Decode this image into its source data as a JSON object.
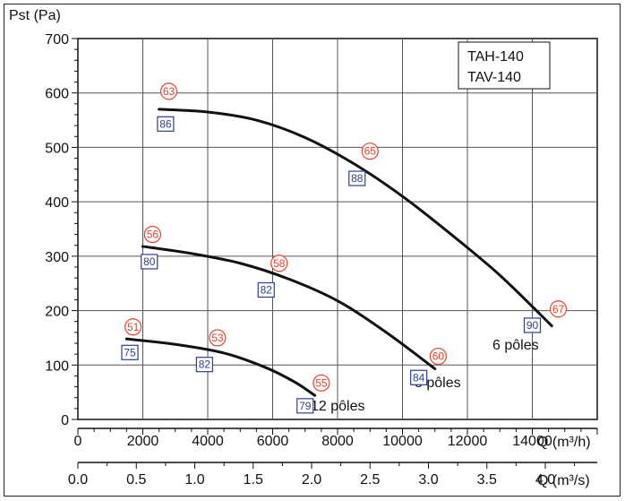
{
  "chart_data": {
    "type": "line",
    "title": "",
    "ylabel": "Pst (Pa)",
    "xlabel_primary": "Q (m³/h)",
    "xlabel_secondary": "Q (m³/s)",
    "xlim": [
      0,
      16000
    ],
    "ylim": [
      0,
      700
    ],
    "grid": true,
    "x_ticks": [
      "0",
      "2000",
      "4000",
      "6000",
      "8000",
      "10000",
      "12000",
      "14000"
    ],
    "x_ticks_secondary": [
      "0.0",
      "0.5",
      "1.0",
      "1.5",
      "2.0",
      "2.5",
      "3.0",
      "3.5",
      "4.0"
    ],
    "y_ticks": [
      "0",
      "100",
      "200",
      "300",
      "400",
      "500",
      "600",
      "700"
    ],
    "legend_box": [
      "TAH-140",
      "TAV-140"
    ],
    "series": [
      {
        "name": "6 pôles",
        "points": [
          [
            2500,
            570
          ],
          [
            4000,
            565
          ],
          [
            5500,
            550
          ],
          [
            7000,
            518
          ],
          [
            8500,
            470
          ],
          [
            10000,
            410
          ],
          [
            11500,
            340
          ],
          [
            13000,
            265
          ],
          [
            14600,
            172
          ]
        ],
        "lw_markers": [
          {
            "x": 2800,
            "y": 603,
            "label": "63"
          },
          {
            "x": 9000,
            "y": 493,
            "label": "65"
          },
          {
            "x": 14800,
            "y": 203,
            "label": "67"
          }
        ],
        "lp_markers": [
          {
            "x": 2700,
            "y": 543,
            "label": "86"
          },
          {
            "x": 8600,
            "y": 443,
            "label": "88"
          },
          {
            "x": 14000,
            "y": 173,
            "label": "90"
          }
        ]
      },
      {
        "name": "8 pôles",
        "points": [
          [
            2000,
            318
          ],
          [
            3500,
            305
          ],
          [
            5000,
            287
          ],
          [
            6500,
            258
          ],
          [
            8000,
            218
          ],
          [
            9500,
            160
          ],
          [
            11000,
            93
          ]
        ],
        "lw_markers": [
          {
            "x": 2300,
            "y": 340,
            "label": "56"
          },
          {
            "x": 6200,
            "y": 287,
            "label": "58"
          },
          {
            "x": 11100,
            "y": 116,
            "label": "60"
          }
        ],
        "lp_markers": [
          {
            "x": 2200,
            "y": 290,
            "label": "80"
          },
          {
            "x": 5800,
            "y": 238,
            "label": "82"
          },
          {
            "x": 10500,
            "y": 77,
            "label": "84"
          }
        ]
      },
      {
        "name": "12 pôles",
        "points": [
          [
            1500,
            148
          ],
          [
            3000,
            138
          ],
          [
            4500,
            122
          ],
          [
            5800,
            95
          ],
          [
            6700,
            68
          ],
          [
            7300,
            44
          ]
        ],
        "lw_markers": [
          {
            "x": 1700,
            "y": 170,
            "label": "51"
          },
          {
            "x": 4300,
            "y": 150,
            "label": "53"
          },
          {
            "x": 7500,
            "y": 67,
            "label": "55"
          }
        ],
        "lp_markers": [
          {
            "x": 1600,
            "y": 123,
            "label": "75"
          },
          {
            "x": 3900,
            "y": 101,
            "label": "82"
          },
          {
            "x": 7000,
            "y": 25,
            "label": "79"
          }
        ]
      }
    ]
  }
}
